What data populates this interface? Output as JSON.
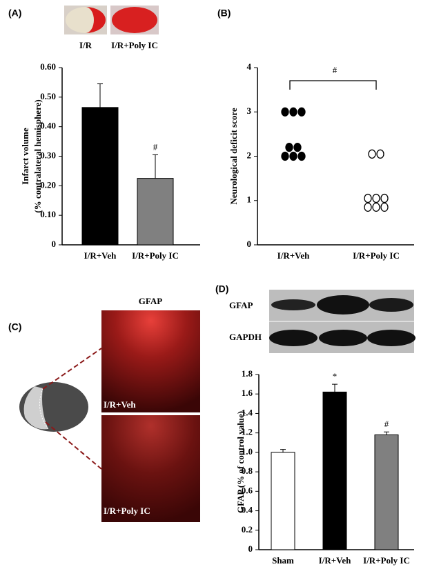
{
  "chart_data": [
    {
      "type": "bar",
      "panel": "(A)",
      "images": [
        "I/R",
        "I/R+Poly IC"
      ],
      "ylabel": [
        "Infarct volume",
        "(% contralateral hemisphere)"
      ],
      "categories": [
        "I/R+Veh",
        "I/R+Poly IC"
      ],
      "values": [
        0.465,
        0.225
      ],
      "errors": [
        0.08,
        0.08
      ],
      "colors": [
        "#000000",
        "#808080"
      ],
      "bar_labels": [
        null,
        "#"
      ],
      "ylim": [
        0,
        0.6
      ],
      "yticks": [
        0,
        {
          "value": 0.1,
          "label": "0.10"
        },
        {
          "value": 0.2,
          "label": "0.20"
        },
        {
          "value": 0.3,
          "label": "0.30"
        },
        {
          "value": 0.4,
          "label": "0.40"
        },
        {
          "value": 0.5,
          "label": "0.50"
        },
        {
          "value": 0.6,
          "label": "0.60"
        }
      ]
    },
    {
      "type": "scatter",
      "panel": "(B)",
      "ylabel": [
        "Neurological deficit score"
      ],
      "categories": [
        "I/R+Veh",
        "I/R+Poly IC"
      ],
      "points": [
        [
          3,
          3,
          3,
          2.2,
          2.2,
          2,
          2,
          2
        ],
        [
          2.05,
          2.05,
          1.05,
          1.05,
          1.05,
          0.85,
          0.85,
          0.85
        ]
      ],
      "marker_fill": [
        "#000000",
        "none"
      ],
      "annotation": "#",
      "ylim": [
        0,
        4
      ],
      "yticks": [
        0,
        1,
        2,
        3,
        4
      ]
    },
    {
      "type": "bar",
      "panel": "(D)",
      "blot_labels": [
        "GFAP",
        "GAPDH"
      ],
      "ylabel": [
        "GFAP (% of control value)"
      ],
      "categories": [
        "Sham",
        "I/R+Veh",
        "I/R+Poly IC"
      ],
      "values": [
        1.0,
        1.62,
        1.18
      ],
      "errors": [
        0.03,
        0.08,
        0.03
      ],
      "colors": [
        "#ffffff",
        "#000000",
        "#808080"
      ],
      "bar_labels": [
        null,
        "*",
        "#"
      ],
      "ylim": [
        0,
        1.8
      ],
      "yticks": [
        0,
        0.2,
        0.4,
        0.6,
        0.8,
        {
          "value": 1,
          "label": "1.0"
        },
        1.2,
        1.4,
        1.6,
        1.8
      ]
    }
  ],
  "figure_c": {
    "panel": "(C)",
    "title": "GFAP",
    "images": [
      "I/R+Veh",
      "I/R+Poly IC"
    ]
  }
}
